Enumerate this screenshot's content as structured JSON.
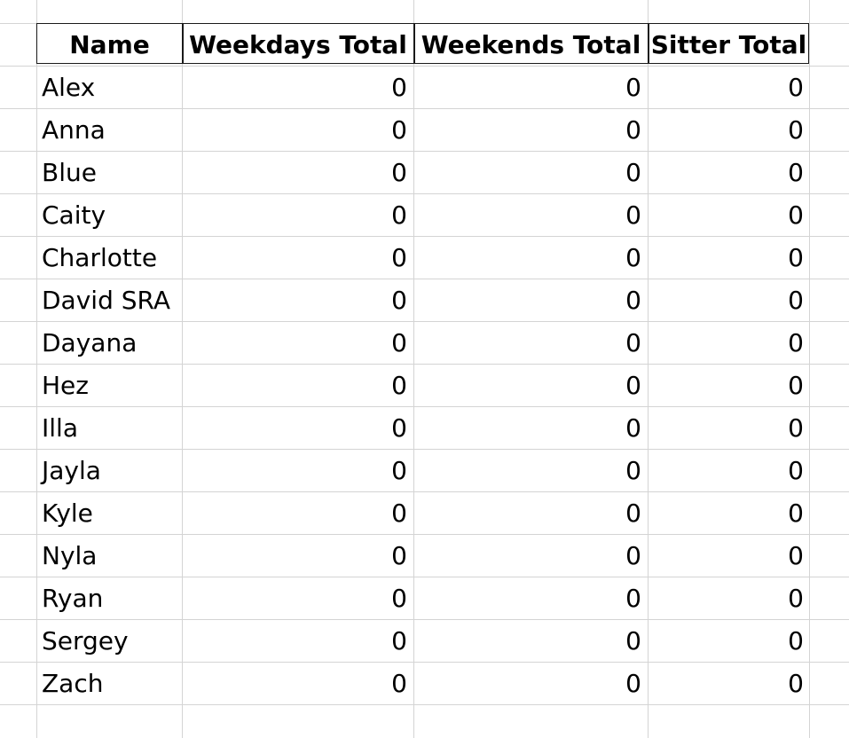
{
  "table": {
    "headers": [
      "Name",
      "Weekdays Total",
      "Weekends Total",
      "Sitter Total"
    ],
    "rows": [
      [
        "Alex",
        "0",
        "0",
        "0"
      ],
      [
        "Anna",
        "0",
        "0",
        "0"
      ],
      [
        "Blue",
        "0",
        "0",
        "0"
      ],
      [
        "Caity",
        "0",
        "0",
        "0"
      ],
      [
        "Charlotte",
        "0",
        "0",
        "0"
      ],
      [
        "David SRA",
        "0",
        "0",
        "0"
      ],
      [
        "Dayana",
        "0",
        "0",
        "0"
      ],
      [
        "Hez",
        "0",
        "0",
        "0"
      ],
      [
        "Illa",
        "0",
        "0",
        "0"
      ],
      [
        "Jayla",
        "0",
        "0",
        "0"
      ],
      [
        "Kyle",
        "0",
        "0",
        "0"
      ],
      [
        "Nyla",
        "0",
        "0",
        "0"
      ],
      [
        "Ryan",
        "0",
        "0",
        "0"
      ],
      [
        "Sergey",
        "0",
        "0",
        "0"
      ],
      [
        "Zach",
        "0",
        "0",
        "0"
      ]
    ]
  },
  "colors": {
    "gridline": "#d4d4d4",
    "border": "#1a1a1a",
    "text": "#000000",
    "background": "#ffffff"
  }
}
